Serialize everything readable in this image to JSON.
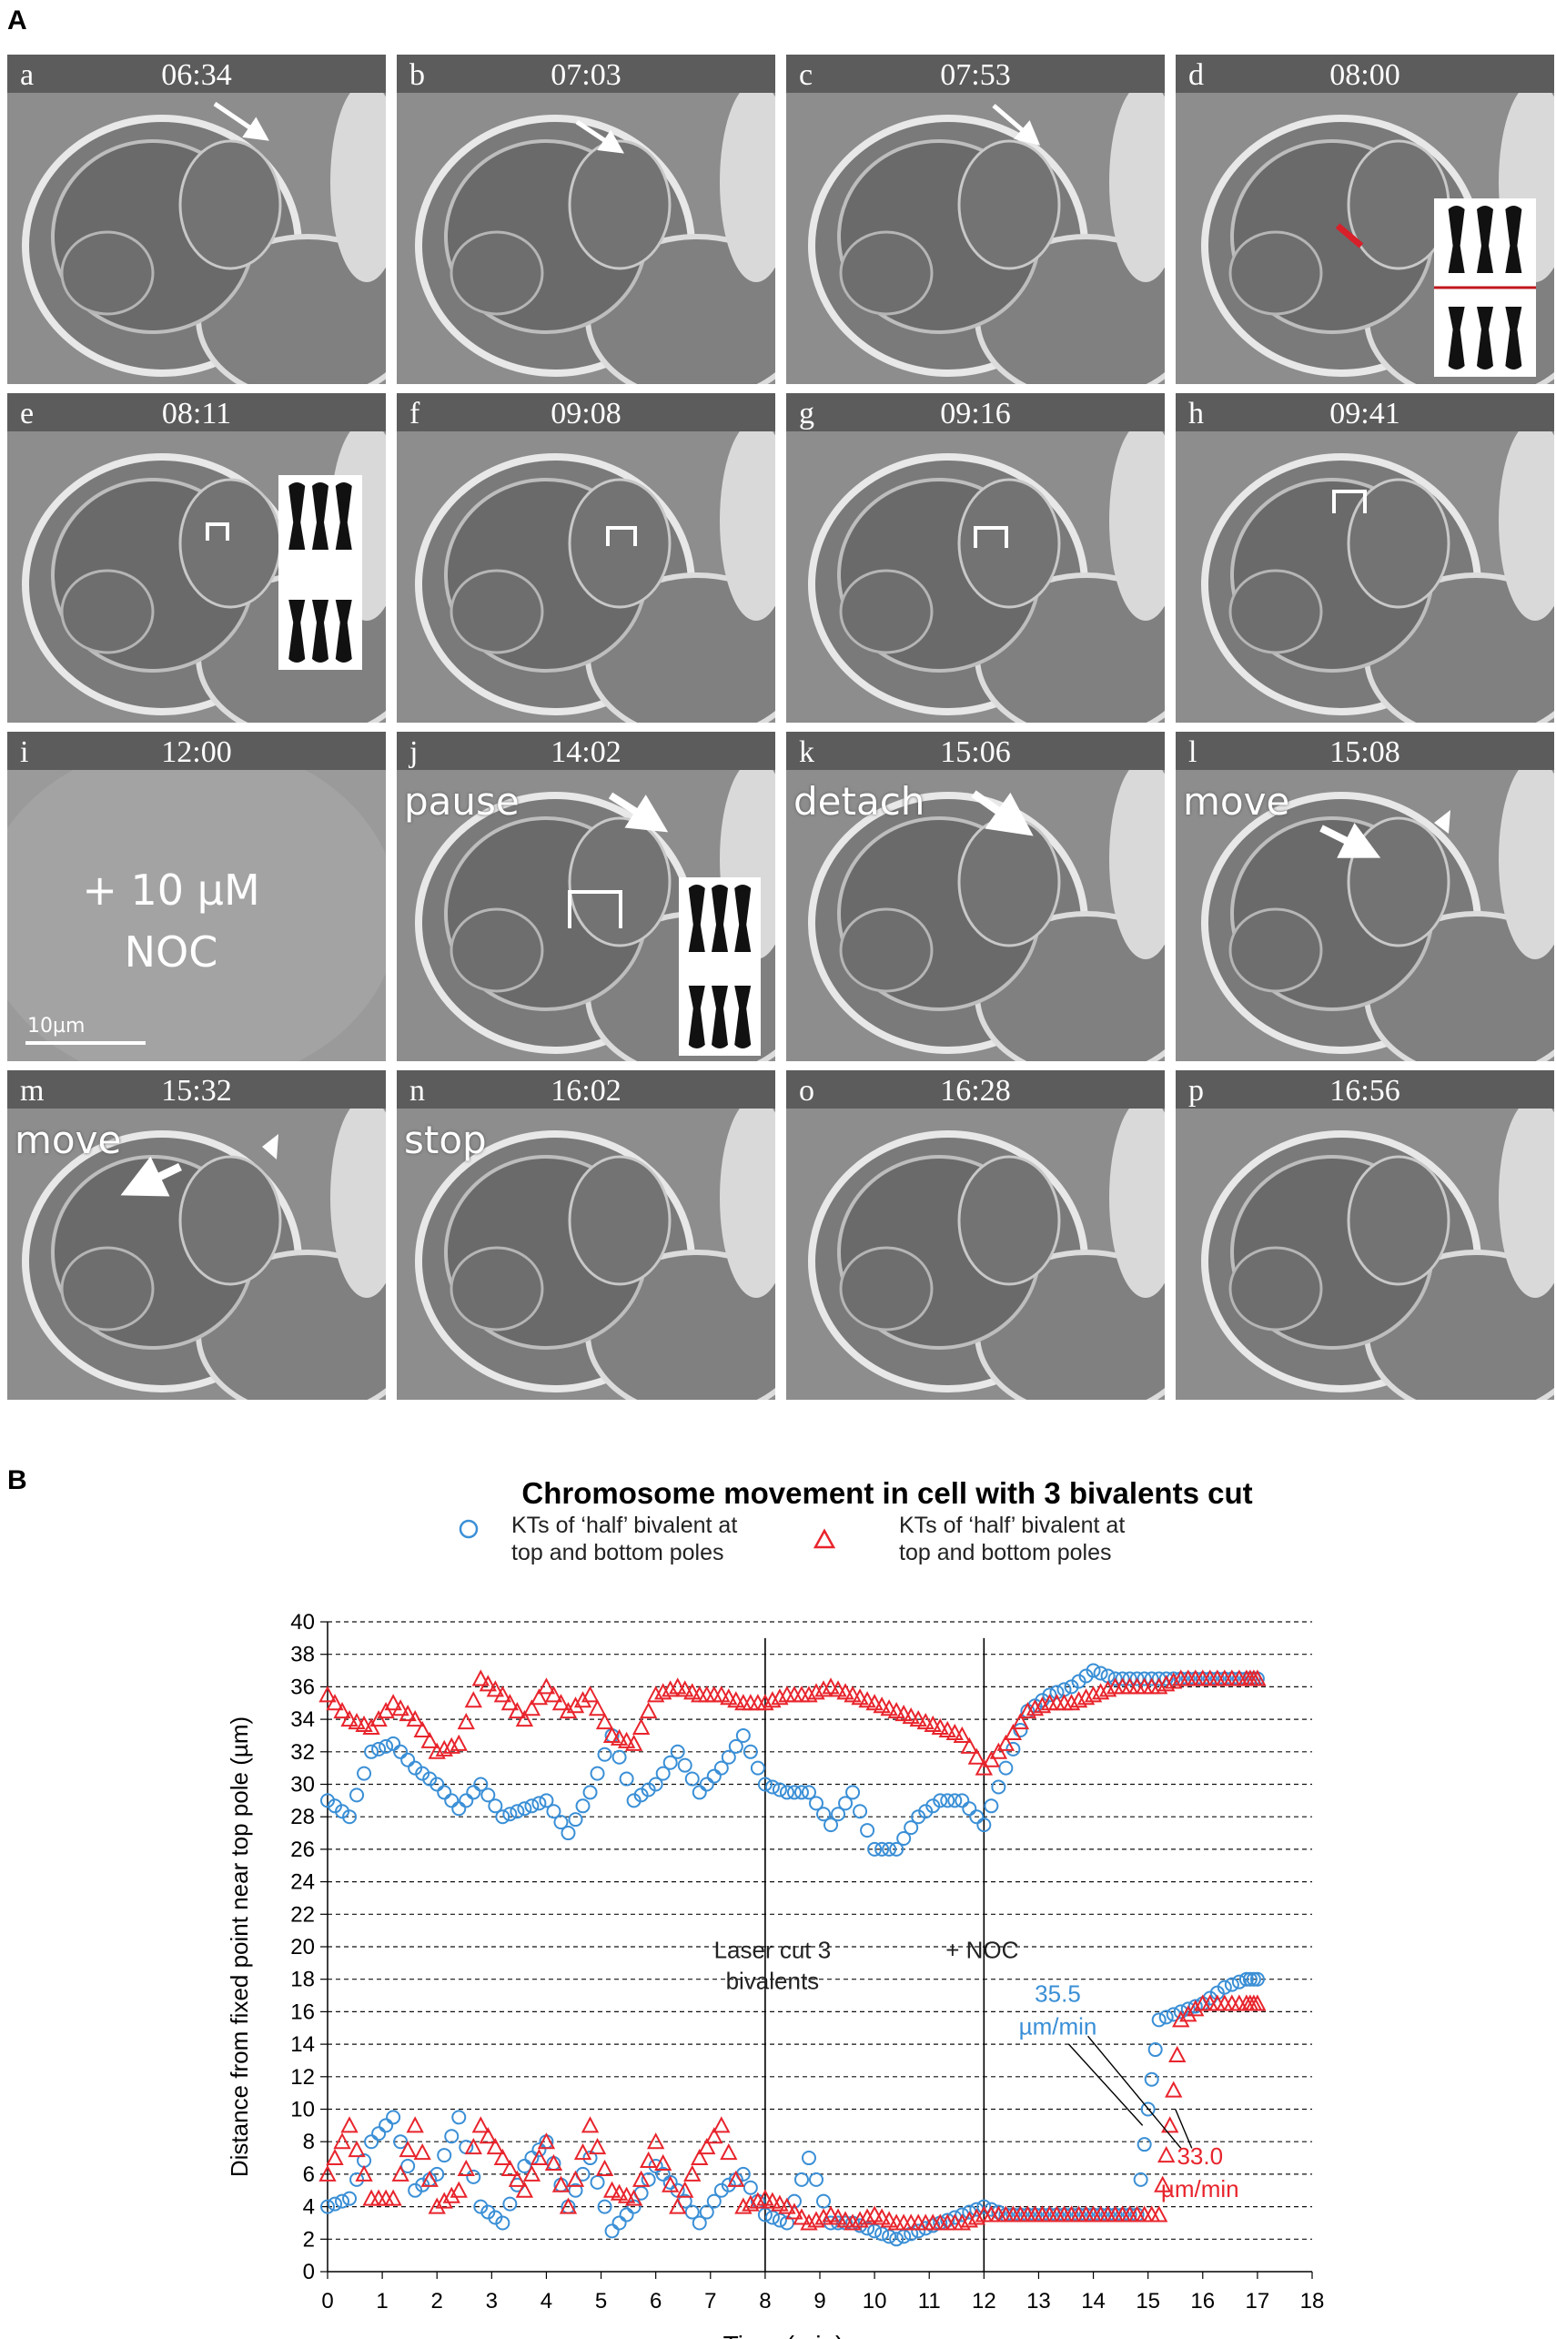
{
  "figure": {
    "panel_a_label": "A",
    "panel_b_label": "B"
  },
  "frames": [
    {
      "letter": "a",
      "time": "06:34",
      "word": ""
    },
    {
      "letter": "b",
      "time": "07:03",
      "word": ""
    },
    {
      "letter": "c",
      "time": "07:53",
      "word": ""
    },
    {
      "letter": "d",
      "time": "08:00",
      "word": ""
    },
    {
      "letter": "e",
      "time": "08:11",
      "word": ""
    },
    {
      "letter": "f",
      "time": "09:08",
      "word": ""
    },
    {
      "letter": "g",
      "time": "09:16",
      "word": ""
    },
    {
      "letter": "h",
      "time": "09:41",
      "word": ""
    },
    {
      "letter": "i",
      "time": "12:00",
      "word": ""
    },
    {
      "letter": "j",
      "time": "14:02",
      "word": "pause"
    },
    {
      "letter": "k",
      "time": "15:06",
      "word": "detach"
    },
    {
      "letter": "l",
      "time": "15:08",
      "word": "move"
    },
    {
      "letter": "m",
      "time": "15:32",
      "word": "move"
    },
    {
      "letter": "n",
      "time": "16:02",
      "word": "stop"
    },
    {
      "letter": "o",
      "time": "16:28",
      "word": ""
    },
    {
      "letter": "p",
      "time": "16:56",
      "word": ""
    }
  ],
  "frame_i": {
    "treatment_line1": "+ 10 µM",
    "treatment_line2": "NOC",
    "scale_label": "10µm"
  },
  "chart_data": {
    "type": "scatter",
    "title": "Chromosome movement in cell with 3 bivalents cut",
    "xlabel": "Time (min)",
    "ylabel": "Distance from fixed point near top pole (µm)",
    "xlim": [
      0,
      18
    ],
    "ylim": [
      0,
      40
    ],
    "xticks": [
      0,
      1,
      2,
      3,
      4,
      5,
      6,
      7,
      8,
      9,
      10,
      11,
      12,
      13,
      14,
      15,
      16,
      17,
      18
    ],
    "yticks": [
      0,
      2,
      4,
      6,
      8,
      10,
      12,
      14,
      16,
      18,
      20,
      22,
      24,
      26,
      28,
      30,
      32,
      34,
      36,
      38,
      40
    ],
    "grid": "horizontal dashed",
    "legend": [
      {
        "symbol": "circle",
        "color": "#3a8fd6",
        "label_line1": "KTs of ‘half’ bivalent at",
        "label_line2": "top and bottom poles"
      },
      {
        "symbol": "triangle",
        "color": "#e8242c",
        "label_line1": "KTs of ‘half’ bivalent at",
        "label_line2": "top and bottom poles"
      }
    ],
    "event_lines": [
      {
        "x": 8,
        "label_line1": "Laser cut 3",
        "label_line2": "bivalents"
      },
      {
        "x": 12,
        "label_line1": "+ NOC",
        "label_line2": ""
      }
    ],
    "rate_annotations": [
      {
        "series": "blue",
        "value_text": "35.5",
        "unit_text": "µm/min",
        "color": "#3a8fd6"
      },
      {
        "series": "red",
        "value_text": "33.0",
        "unit_text": "µm/min",
        "color": "#e8242c"
      }
    ],
    "series": [
      {
        "id": "blue_top",
        "color": "#3a8fd6",
        "marker": "circle",
        "x": [
          0,
          0.4,
          0.8,
          1.2,
          1.6,
          2.0,
          2.4,
          2.8,
          3.2,
          3.6,
          4.0,
          4.4,
          4.8,
          5.2,
          5.6,
          6.0,
          6.4,
          6.8,
          7.2,
          7.6,
          8.0,
          8.4,
          8.8,
          9.2,
          9.6,
          10.0,
          10.4,
          10.8,
          11.2,
          11.6,
          12.0,
          12.4,
          12.8,
          13.2,
          13.6,
          14.0,
          14.4,
          14.8,
          15.2,
          15.6,
          16.0,
          16.4,
          16.8,
          17.0
        ],
        "y": [
          29,
          28,
          32,
          32.5,
          31,
          30,
          28.5,
          30,
          28,
          28.5,
          29,
          27,
          29.5,
          33,
          29,
          30,
          32,
          29.5,
          31,
          33,
          30,
          29.5,
          29.5,
          27.5,
          29.5,
          26,
          26,
          28,
          29,
          29,
          27.5,
          31,
          34.5,
          35.5,
          36,
          37,
          36.5,
          36.5,
          36.5,
          36.5,
          36.5,
          36.5,
          36.5,
          36.5
        ]
      },
      {
        "id": "red_top",
        "color": "#e8242c",
        "marker": "triangle",
        "x": [
          0,
          0.4,
          0.8,
          1.2,
          1.6,
          2.0,
          2.4,
          2.8,
          3.2,
          3.6,
          4.0,
          4.4,
          4.8,
          5.2,
          5.6,
          6.0,
          6.4,
          6.8,
          7.2,
          7.6,
          8.0,
          8.4,
          8.8,
          9.2,
          9.6,
          10.0,
          10.4,
          10.8,
          11.2,
          11.6,
          12.0,
          12.4,
          12.8,
          13.2,
          13.6,
          14.0,
          14.4,
          14.8,
          15.2,
          15.6,
          16.0,
          16.4,
          16.8,
          17.0
        ],
        "y": [
          35.5,
          34,
          33.5,
          35,
          34,
          32,
          32.5,
          36.5,
          35.5,
          34,
          36,
          34.5,
          35.5,
          33,
          32.5,
          35.5,
          36,
          35.5,
          35.5,
          35,
          35,
          35.5,
          35.5,
          36,
          35.5,
          35,
          34.5,
          34,
          33.5,
          33,
          31,
          32.5,
          34.5,
          35,
          35,
          35.5,
          36,
          36,
          36,
          36.5,
          36.5,
          36.5,
          36.5,
          36.5
        ]
      },
      {
        "id": "blue_bottom",
        "color": "#3a8fd6",
        "marker": "circle",
        "x": [
          0,
          0.4,
          0.8,
          1.2,
          1.6,
          2.0,
          2.4,
          2.8,
          3.2,
          3.6,
          4.0,
          4.4,
          4.8,
          5.2,
          5.6,
          6.0,
          6.4,
          6.8,
          7.2,
          7.6,
          8.0,
          8.4,
          8.8,
          9.2,
          9.6,
          10.0,
          10.4,
          10.8,
          11.2,
          11.6,
          12.0,
          12.4,
          12.8,
          13.2,
          13.6,
          14.0,
          14.4,
          14.8,
          15.0,
          15.2,
          15.6,
          16.0,
          16.4,
          16.8,
          17.0
        ],
        "y": [
          4,
          4.5,
          8,
          9.5,
          5,
          6,
          9.5,
          4,
          3,
          6.5,
          8,
          4,
          7,
          2.5,
          4,
          6.5,
          5,
          3,
          5,
          6,
          3.5,
          3,
          7,
          3,
          3,
          2.5,
          2,
          2.5,
          3,
          3.5,
          4,
          3.5,
          3.5,
          3.5,
          3.5,
          3.5,
          3.5,
          3.5,
          10,
          15.5,
          16,
          16.5,
          17.5,
          18,
          18
        ]
      },
      {
        "id": "red_bottom",
        "color": "#e8242c",
        "marker": "triangle",
        "x": [
          0,
          0.4,
          0.8,
          1.2,
          1.6,
          2.0,
          2.4,
          2.8,
          3.2,
          3.6,
          4.0,
          4.4,
          4.8,
          5.2,
          5.6,
          6.0,
          6.4,
          6.8,
          7.2,
          7.6,
          8.0,
          8.4,
          8.8,
          9.2,
          9.6,
          10.0,
          10.4,
          10.8,
          11.2,
          11.6,
          12.0,
          12.4,
          12.8,
          13.2,
          13.6,
          14.0,
          14.4,
          14.8,
          15.2,
          15.4,
          15.6,
          16.0,
          16.4,
          16.8,
          17.0
        ],
        "y": [
          6,
          9,
          4.5,
          4.5,
          9,
          4,
          5,
          9,
          7,
          5,
          8,
          4,
          9,
          5,
          4.5,
          8,
          4,
          7,
          9,
          4,
          4.5,
          4,
          3,
          3.5,
          3,
          3.5,
          3,
          3,
          3,
          3,
          3.5,
          3.5,
          3.5,
          3.5,
          3.5,
          3.5,
          3.5,
          3.5,
          3.5,
          9,
          15.5,
          16.5,
          16.5,
          16.5,
          16.5
        ]
      }
    ]
  }
}
